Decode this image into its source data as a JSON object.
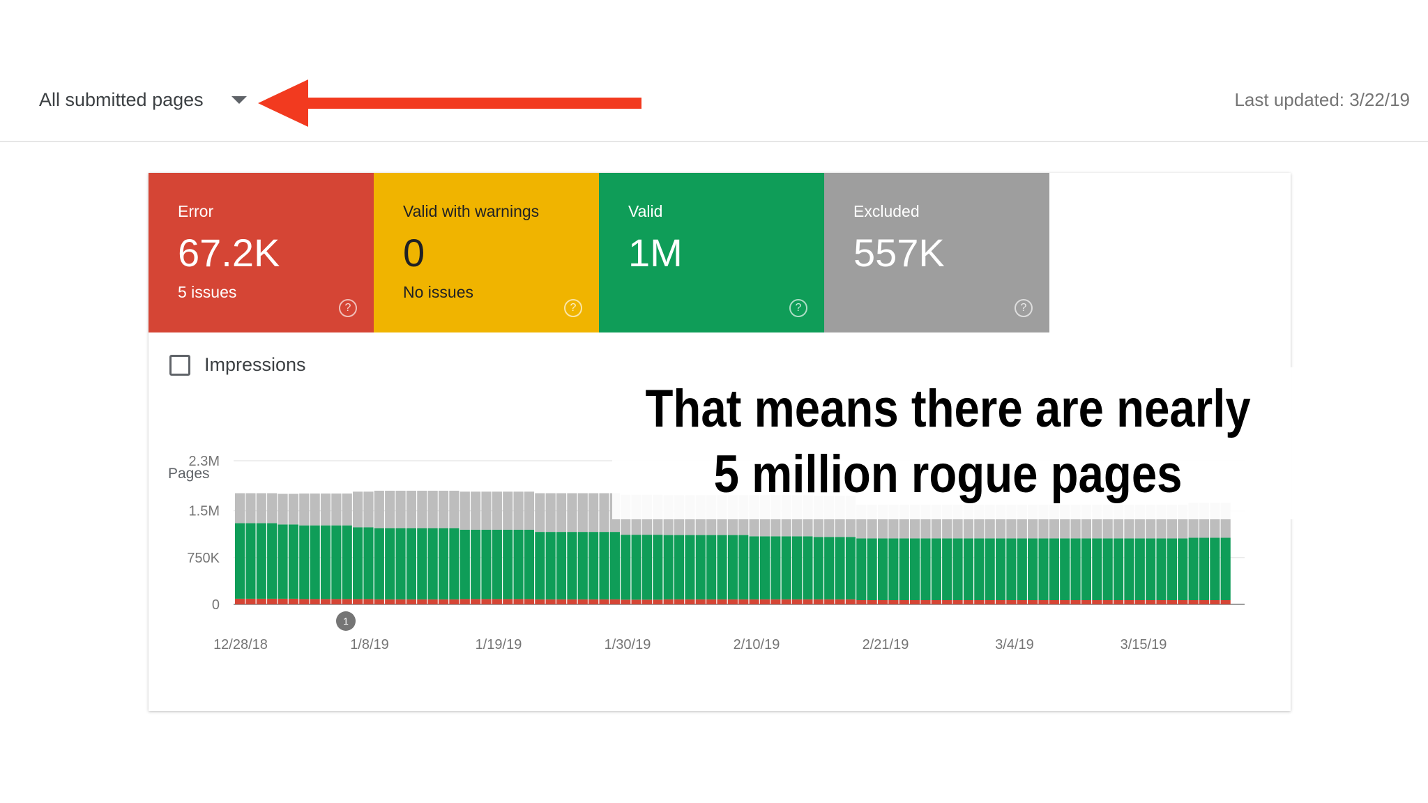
{
  "toolbar": {
    "filter_label": "All submitted pages",
    "dropdown_icon": "dropdown-arrow-icon",
    "last_updated": "Last updated: 3/22/19",
    "annotation_arrow_color": "#f23a1f"
  },
  "tiles": [
    {
      "label": "Error",
      "value": "67.2K",
      "sub": "5 issues",
      "color": "#d54535",
      "icon": "help-icon"
    },
    {
      "label": "Valid with warnings",
      "value": "0",
      "sub": "No issues",
      "color": "#f0b400",
      "icon": "help-icon"
    },
    {
      "label": "Valid",
      "value": "1M",
      "sub": "",
      "color": "#0f9d58",
      "icon": "help-icon"
    },
    {
      "label": "Excluded",
      "value": "557K",
      "sub": "",
      "color": "#9e9e9e",
      "icon": "help-icon"
    }
  ],
  "impressions": {
    "label": "Impressions",
    "checked": false
  },
  "chart_data": {
    "type": "bar",
    "stacked": true,
    "ylabel": "Pages",
    "yticks": [
      "0",
      "750K",
      "1.5M",
      "2.3M"
    ],
    "ylim": [
      0,
      2300000
    ],
    "xticks": [
      "12/28/18",
      "1/8/19",
      "1/19/19",
      "1/30/19",
      "2/10/19",
      "2/21/19",
      "3/4/19",
      "3/15/19"
    ],
    "grid": true,
    "colors": {
      "Error": "#d54535",
      "Valid": "#0f9d58",
      "Excluded": "#bdbdbd"
    },
    "segments": [
      {
        "days": 4,
        "error": 90000,
        "valid": 1210000,
        "excluded": 480000
      },
      {
        "days": 2,
        "error": 90000,
        "valid": 1190000,
        "excluded": 490000
      },
      {
        "days": 5,
        "error": 85000,
        "valid": 1180000,
        "excluded": 510000
      },
      {
        "days": 2,
        "error": 85000,
        "valid": 1150000,
        "excluded": 570000
      },
      {
        "days": 8,
        "error": 80000,
        "valid": 1140000,
        "excluded": 600000
      },
      {
        "days": 7,
        "error": 85000,
        "valid": 1110000,
        "excluded": 610000
      },
      {
        "days": 8,
        "error": 80000,
        "valid": 1080000,
        "excluded": 620000
      },
      {
        "days": 4,
        "error": 75000,
        "valid": 1040000,
        "excluded": 640000
      },
      {
        "days": 8,
        "error": 80000,
        "valid": 1030000,
        "excluded": 640000
      },
      {
        "days": 6,
        "error": 80000,
        "valid": 1010000,
        "excluded": 660000
      },
      {
        "days": 4,
        "error": 80000,
        "valid": 1000000,
        "excluded": 660000
      },
      {
        "days": 31,
        "error": 67000,
        "valid": 990000,
        "excluded": 540000
      },
      {
        "days": 4,
        "error": 67000,
        "valid": 1000000,
        "excluded": 557000
      }
    ],
    "annotations": [
      {
        "label": "1",
        "x": "1/6/19"
      }
    ]
  },
  "overlay": {
    "caption_line1": "That means there are nearly",
    "caption_line2": "5 million rogue pages"
  }
}
